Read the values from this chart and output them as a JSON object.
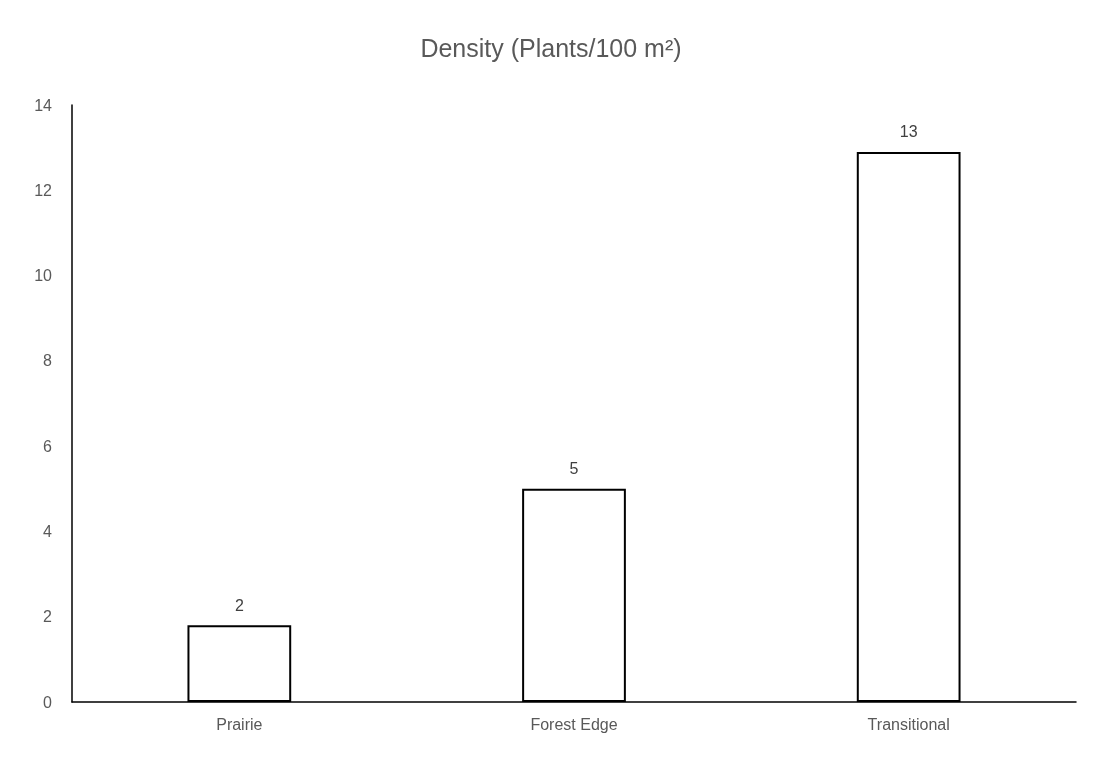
{
  "chart_data": {
    "type": "bar",
    "title": "Density (Plants/100 m²)",
    "categories": [
      "Prairie",
      "Forest Edge",
      "Transitional"
    ],
    "series": [
      {
        "color": "#ffffff",
        "values": [
          1.8,
          5,
          12.9
        ],
        "value_labels": [
          "2",
          "5",
          "13"
        ]
      }
    ],
    "ylim": [
      0,
      14
    ],
    "yticks": [
      0,
      2,
      4,
      6,
      8,
      10,
      12,
      14
    ],
    "grid": false
  }
}
